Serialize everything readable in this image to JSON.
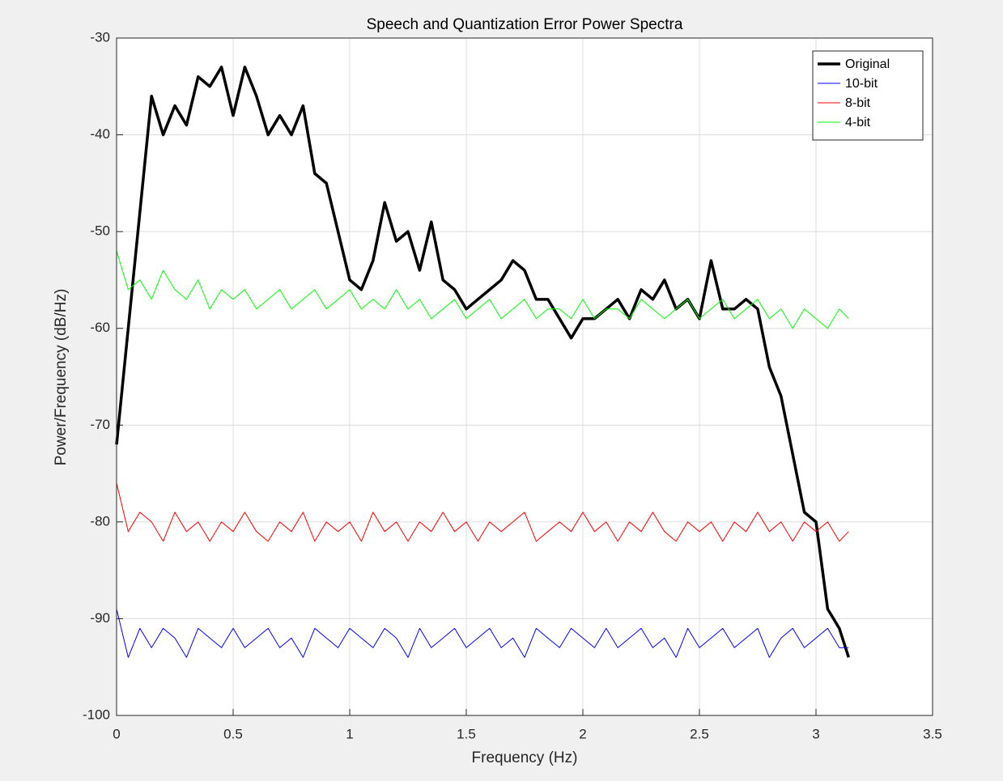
{
  "chart_data": {
    "type": "line",
    "title": "Speech and Quantization Error Power Spectra",
    "x_label": "Frequency (Hz)",
    "y_label": "Power/Frequency (dB/Hz)",
    "xlim": [
      0,
      3.5
    ],
    "ylim": [
      -100,
      -30
    ],
    "xticks": [
      0,
      0.5,
      1,
      1.5,
      2,
      2.5,
      3,
      3.5
    ],
    "yticks": [
      -100,
      -90,
      -80,
      -70,
      -60,
      -50,
      -40,
      -30
    ],
    "grid": true,
    "legend": "northeast",
    "x": [
      0,
      0.05,
      0.1,
      0.15,
      0.2,
      0.25,
      0.3,
      0.35,
      0.4,
      0.45,
      0.5,
      0.55,
      0.6,
      0.65,
      0.7,
      0.75,
      0.8,
      0.85,
      0.9,
      0.95,
      1,
      1.05,
      1.1,
      1.15,
      1.2,
      1.25,
      1.3,
      1.35,
      1.4,
      1.45,
      1.5,
      1.55,
      1.6,
      1.65,
      1.7,
      1.75,
      1.8,
      1.85,
      1.9,
      1.95,
      2,
      2.05,
      2.1,
      2.15,
      2.2,
      2.25,
      2.3,
      2.35,
      2.4,
      2.45,
      2.5,
      2.55,
      2.6,
      2.65,
      2.7,
      2.75,
      2.8,
      2.85,
      2.9,
      2.95,
      3,
      3.05,
      3.1,
      3.14
    ],
    "series": [
      {
        "name": "Original",
        "color": "#000000",
        "width": 3.5,
        "values": [
          -72,
          -60,
          -48,
          -36,
          -40,
          -37,
          -39,
          -34,
          -35,
          -33,
          -38,
          -33,
          -36,
          -40,
          -38,
          -40,
          -37,
          -44,
          -45,
          -50,
          -55,
          -56,
          -53,
          -47,
          -51,
          -50,
          -54,
          -49,
          -55,
          -56,
          -58,
          -57,
          -56,
          -55,
          -53,
          -54,
          -57,
          -57,
          -59,
          -61,
          -59,
          -59,
          -58,
          -57,
          -59,
          -56,
          -57,
          -55,
          -58,
          -57,
          -59,
          -53,
          -58,
          -58,
          -57,
          -58,
          -64,
          -67,
          -73,
          -79,
          -80,
          -89,
          -91,
          -94
        ]
      },
      {
        "name": "10-bit",
        "color": "#0000ff",
        "width": 1,
        "values": [
          -89,
          -94,
          -91,
          -93,
          -91,
          -92,
          -94,
          -91,
          -92,
          -93,
          -91,
          -93,
          -92,
          -91,
          -93,
          -92,
          -94,
          -91,
          -92,
          -93,
          -91,
          -92,
          -93,
          -91,
          -92,
          -94,
          -91,
          -93,
          -92,
          -91,
          -93,
          -92,
          -91,
          -93,
          -92,
          -94,
          -91,
          -92,
          -93,
          -91,
          -92,
          -93,
          -91,
          -93,
          -92,
          -91,
          -93,
          -92,
          -94,
          -91,
          -93,
          -92,
          -91,
          -93,
          -92,
          -91,
          -94,
          -92,
          -91,
          -93,
          -92,
          -91,
          -93,
          -93
        ]
      },
      {
        "name": "8-bit",
        "color": "#ff0000",
        "width": 1,
        "values": [
          -76,
          -81,
          -79,
          -80,
          -82,
          -79,
          -81,
          -80,
          -82,
          -80,
          -81,
          -79,
          -81,
          -82,
          -80,
          -81,
          -79,
          -82,
          -80,
          -81,
          -80,
          -82,
          -79,
          -81,
          -80,
          -82,
          -80,
          -81,
          -79,
          -81,
          -80,
          -82,
          -80,
          -81,
          -80,
          -79,
          -82,
          -81,
          -80,
          -81,
          -79,
          -81,
          -80,
          -82,
          -80,
          -81,
          -79,
          -81,
          -82,
          -80,
          -81,
          -80,
          -82,
          -80,
          -81,
          -79,
          -81,
          -80,
          -82,
          -80,
          -81,
          -80,
          -82,
          -81
        ]
      },
      {
        "name": "4-bit",
        "color": "#00ff00",
        "width": 1,
        "values": [
          -52,
          -56,
          -55,
          -57,
          -54,
          -56,
          -57,
          -55,
          -58,
          -56,
          -57,
          -56,
          -58,
          -57,
          -56,
          -58,
          -57,
          -56,
          -58,
          -57,
          -56,
          -58,
          -57,
          -58,
          -56,
          -58,
          -57,
          -59,
          -58,
          -57,
          -59,
          -58,
          -57,
          -59,
          -58,
          -57,
          -59,
          -58,
          -58,
          -59,
          -57,
          -59,
          -58,
          -58,
          -59,
          -57,
          -58,
          -59,
          -58,
          -57,
          -59,
          -58,
          -57,
          -59,
          -58,
          -57,
          -59,
          -58,
          -60,
          -58,
          -59,
          -60,
          -58,
          -59
        ]
      }
    ]
  }
}
